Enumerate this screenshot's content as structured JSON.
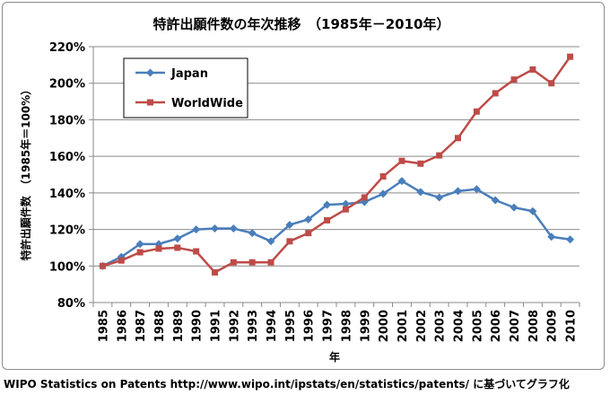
{
  "chart_data": {
    "type": "line",
    "title": "特許出願件数の年次推移　（1985年－2010年）",
    "xlabel": "年",
    "ylabel": "特許出願件数　（1985年＝100%）",
    "ylim": [
      80,
      220
    ],
    "y_ticks": [
      "80%",
      "100%",
      "120%",
      "140%",
      "160%",
      "180%",
      "200%",
      "220%"
    ],
    "grid": true,
    "legend_position": "top-left",
    "x": [
      "1985",
      "1986",
      "1987",
      "1988",
      "1989",
      "1990",
      "1991",
      "1992",
      "1993",
      "1994",
      "1995",
      "1996",
      "1997",
      "1998",
      "1999",
      "2000",
      "2001",
      "2002",
      "2003",
      "2004",
      "2005",
      "2006",
      "2007",
      "2008",
      "2009",
      "2010"
    ],
    "series": [
      {
        "name": "Japan",
        "color": "#4a7ebb",
        "marker": "diamond",
        "values": [
          100,
          105,
          112,
          112,
          115,
          120,
          120.5,
          120.5,
          118,
          113.5,
          122.5,
          125.5,
          133.5,
          134,
          135,
          139.5,
          146.5,
          140.5,
          137.5,
          141,
          142,
          136,
          132,
          130,
          116,
          114.5
        ]
      },
      {
        "name": "WorldWide",
        "color": "#be4b48",
        "marker": "square",
        "values": [
          100,
          103,
          107.5,
          109.5,
          110,
          108,
          96.5,
          102,
          102,
          102,
          113.5,
          118,
          125,
          131,
          137.5,
          149,
          157.5,
          156,
          160.5,
          170,
          184.5,
          194.5,
          202,
          207.5,
          200,
          214.5
        ]
      }
    ]
  },
  "source_note": "WIPO Statistics on Patents http://www.wipo.int/ipstats/en/statistics/patents/ に基づいてグラフ化"
}
